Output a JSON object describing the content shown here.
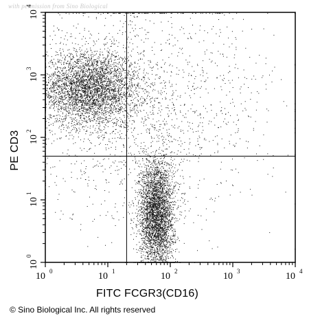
{
  "watermark": "with permission from Sino Biological",
  "copyright": "© Sino Biological Inc. All rights reserved",
  "chart_data": {
    "type": "scatter",
    "xlabel": "FITC FCGR3(CD16)",
    "ylabel": "PE CD3",
    "xscale": "log",
    "yscale": "log",
    "xlim": [
      1,
      10000
    ],
    "ylim": [
      1,
      10000
    ],
    "x_ticks": [
      {
        "base": "10",
        "exp": "0",
        "value": 1
      },
      {
        "base": "10",
        "exp": "1",
        "value": 10
      },
      {
        "base": "10",
        "exp": "2",
        "value": 100
      },
      {
        "base": "10",
        "exp": "3",
        "value": 1000
      },
      {
        "base": "10",
        "exp": "4",
        "value": 10000
      }
    ],
    "y_ticks": [
      {
        "base": "10",
        "exp": "0",
        "value": 1
      },
      {
        "base": "10",
        "exp": "1",
        "value": 10
      },
      {
        "base": "10",
        "exp": "2",
        "value": 100
      },
      {
        "base": "10",
        "exp": "3",
        "value": 1000
      },
      {
        "base": "10",
        "exp": "4",
        "value": 10000
      }
    ],
    "quadrant_gate": {
      "x": 20,
      "y": 50
    },
    "populations": [
      {
        "center": [
          5,
          600
        ],
        "spread_decades": [
          0.4,
          0.3
        ],
        "relative_density": 0.42
      },
      {
        "center": [
          60,
          6
        ],
        "spread_decades": [
          0.14,
          0.45
        ],
        "relative_density": 0.4
      },
      {
        "center": [
          40,
          300
        ],
        "spread_decades": [
          1.0,
          0.9
        ],
        "relative_density": 0.18
      }
    ]
  }
}
